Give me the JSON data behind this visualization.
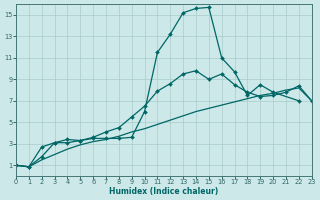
{
  "bg_color": "#cce8e8",
  "grid_color": "#aacccc",
  "line_color": "#006666",
  "xlabel": "Humidex (Indice chaleur)",
  "xlim": [
    0,
    23
  ],
  "ylim": [
    0,
    16
  ],
  "xticks": [
    0,
    1,
    2,
    3,
    4,
    5,
    6,
    7,
    8,
    9,
    10,
    11,
    12,
    13,
    14,
    15,
    16,
    17,
    18,
    19,
    20,
    21,
    22,
    23
  ],
  "yticks": [
    1,
    3,
    5,
    7,
    9,
    11,
    13,
    15
  ],
  "curve1_x": [
    0,
    1,
    2,
    3,
    4,
    5,
    6,
    7,
    8,
    9,
    10,
    11,
    12,
    13,
    14,
    15,
    16,
    17,
    18,
    19,
    20,
    22
  ],
  "curve1_y": [
    1.0,
    0.85,
    2.7,
    3.1,
    3.1,
    3.3,
    3.5,
    3.5,
    3.5,
    3.6,
    6.0,
    11.5,
    13.2,
    15.2,
    15.6,
    15.7,
    11.0,
    9.7,
    7.5,
    8.5,
    7.8,
    7.0
  ],
  "curve2_x": [
    0,
    1,
    2,
    3,
    4,
    5,
    6,
    7,
    8,
    9,
    10,
    11,
    12,
    13,
    14,
    15,
    16,
    17,
    18,
    19,
    20,
    21,
    22,
    23
  ],
  "curve2_y": [
    1.0,
    0.85,
    1.8,
    3.1,
    3.4,
    3.3,
    3.6,
    4.1,
    4.5,
    5.5,
    6.5,
    7.9,
    8.6,
    9.5,
    9.8,
    9.0,
    9.5,
    8.5,
    7.8,
    7.4,
    7.5,
    7.8,
    8.4,
    7.0
  ],
  "curve3_x": [
    0,
    1,
    2,
    3,
    4,
    5,
    6,
    7,
    8,
    9,
    10,
    11,
    12,
    13,
    14,
    15,
    16,
    17,
    18,
    19,
    20,
    21,
    22,
    23
  ],
  "curve3_y": [
    1.0,
    0.85,
    1.5,
    2.0,
    2.5,
    2.9,
    3.2,
    3.4,
    3.7,
    4.1,
    4.4,
    4.8,
    5.2,
    5.6,
    6.0,
    6.3,
    6.6,
    6.9,
    7.2,
    7.5,
    7.7,
    8.0,
    8.2,
    7.0
  ]
}
